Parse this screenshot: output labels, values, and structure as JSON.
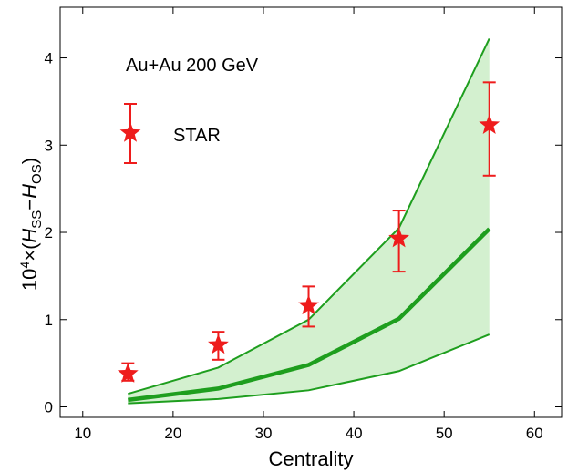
{
  "chart_data": {
    "type": "line",
    "xlabel": "Centrality",
    "ylabel": {
      "prefix": "10",
      "exponent": "4",
      "times": "×(",
      "h1": "H",
      "sub1": "SS",
      "minus": "−",
      "h2": "H",
      "sub2": "OS",
      "close": ")"
    },
    "xlim": [
      7.5,
      63
    ],
    "ylim": [
      -0.12,
      4.58
    ],
    "xticks": [
      10,
      20,
      30,
      40,
      50,
      60
    ],
    "yticks": [
      0,
      1,
      2,
      3,
      4
    ],
    "annotations": {
      "system": "Au+Au  200 GeV",
      "legend_label": "STAR"
    },
    "band": {
      "x": [
        15,
        25,
        35,
        45,
        55
      ],
      "upper": [
        0.15,
        0.45,
        1.0,
        2.05,
        4.22
      ],
      "lower": [
        0.04,
        0.09,
        0.19,
        0.41,
        0.83
      ],
      "central": [
        0.08,
        0.21,
        0.48,
        1.01,
        2.04
      ]
    },
    "series": [
      {
        "name": "STAR",
        "x": [
          15,
          25,
          35,
          45,
          55
        ],
        "y": [
          0.38,
          0.71,
          1.16,
          1.93,
          3.23
        ],
        "yerr_low": [
          0.08,
          0.17,
          0.24,
          0.38,
          0.58
        ],
        "yerr_high": [
          0.12,
          0.15,
          0.22,
          0.32,
          0.49
        ]
      }
    ],
    "colors": {
      "band_fill": "#d3f0cf",
      "band_edge": "#1e9e1e",
      "central_line": "#1e9e1e",
      "star_marker": "#ee1c1c",
      "errorbar": "#ee1c1c"
    },
    "grid": false,
    "legend_position": "top-left"
  }
}
